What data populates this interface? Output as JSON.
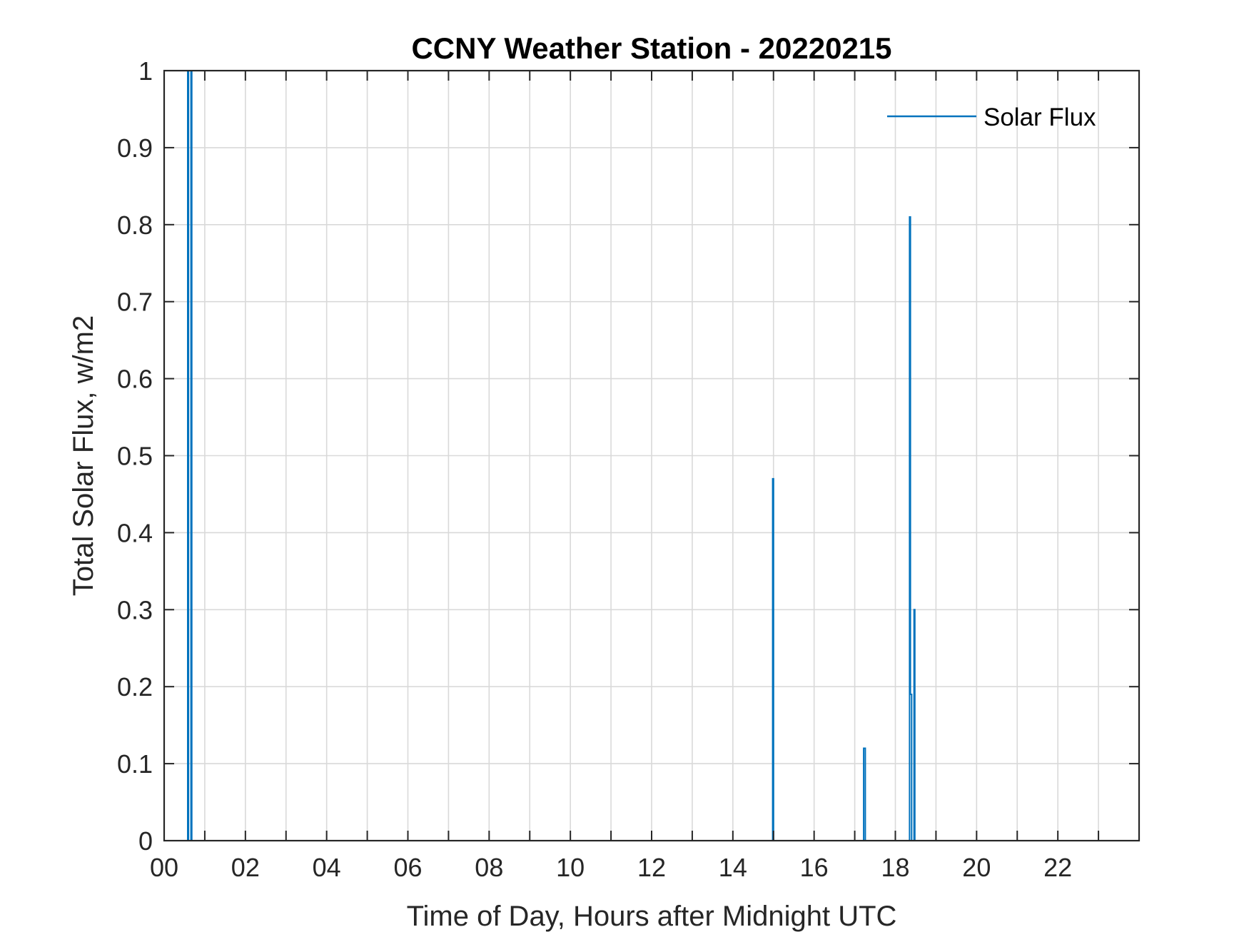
{
  "chart_data": {
    "type": "line",
    "title": "CCNY Weather Station - 20220215",
    "xlabel": "Time of Day, Hours after Midnight UTC",
    "ylabel": "Total Solar Flux, w/m2",
    "xlim": [
      0,
      24
    ],
    "ylim": [
      0,
      1
    ],
    "x_ticks": [
      0,
      2,
      4,
      6,
      8,
      10,
      12,
      14,
      16,
      18,
      20,
      22
    ],
    "x_tick_labels": [
      "00",
      "02",
      "04",
      "06",
      "08",
      "10",
      "12",
      "14",
      "16",
      "18",
      "20",
      "22"
    ],
    "x_minor_ticks": [
      1,
      3,
      5,
      7,
      9,
      11,
      13,
      15,
      17,
      19,
      21,
      23
    ],
    "y_ticks": [
      0,
      0.1,
      0.2,
      0.3,
      0.4,
      0.5,
      0.6,
      0.7,
      0.8,
      0.9,
      1
    ],
    "y_tick_labels": [
      "0",
      "0.1",
      "0.2",
      "0.3",
      "0.4",
      "0.5",
      "0.6",
      "0.7",
      "0.8",
      "0.9",
      "1"
    ],
    "grid": true,
    "legend_position": "top-right",
    "series": [
      {
        "name": "Solar Flux",
        "color": "#0072BD",
        "x": [
          0,
          0.58,
          0.58,
          0.6,
          0.6,
          0.66,
          0.66,
          0.68,
          0.68,
          14.98,
          14.98,
          15.0,
          15.0,
          17.22,
          17.22,
          17.26,
          17.26,
          18.35,
          18.35,
          18.37,
          18.37,
          18.4,
          18.4,
          18.46,
          18.46,
          18.48,
          18.48,
          23.98
        ],
        "y": [
          0,
          0,
          1,
          1,
          0,
          0,
          1,
          1,
          0,
          0,
          0.47,
          0.47,
          0,
          0,
          0.12,
          0.12,
          0,
          0,
          0.81,
          0.81,
          0.19,
          0.19,
          0,
          0,
          0.3,
          0.3,
          0,
          0
        ]
      }
    ]
  }
}
